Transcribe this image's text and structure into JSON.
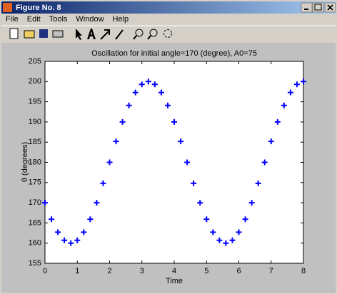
{
  "window": {
    "title": "Figure No. 8",
    "menu": [
      "File",
      "Edit",
      "Tools",
      "Window",
      "Help"
    ]
  },
  "chart_data": {
    "type": "line",
    "marker": "+",
    "title": "Oscillation for initial angle=170 (degree), A0=75",
    "x_label": "Time",
    "y_label": "θ (degrees)",
    "series": [
      {
        "color": "#0000ff",
        "x": [
          0,
          0.2,
          0.4,
          0.6,
          0.8,
          1.0,
          1.2,
          1.4,
          1.6,
          1.8,
          2.0,
          2.2,
          2.4,
          2.6,
          2.8,
          3.0,
          3.2,
          3.4,
          3.6,
          3.8,
          4.0,
          4.2,
          4.4,
          4.6,
          4.8,
          5.0,
          5.2,
          5.4,
          5.6,
          5.8,
          6.0,
          6.2,
          6.4,
          6.6,
          6.8,
          7.0,
          7.2,
          7.4,
          7.6,
          7.8,
          8.0
        ],
        "values": [
          170,
          165.9,
          162.7,
          160.7,
          160,
          160.7,
          162.7,
          165.9,
          170,
          174.8,
          180,
          185.2,
          190,
          194.1,
          197.3,
          199.3,
          200,
          199.3,
          197.3,
          194.1,
          190,
          185.2,
          180,
          174.8,
          170,
          165.9,
          162.7,
          160.7,
          160,
          160.7,
          162.7,
          165.9,
          170,
          174.8,
          180,
          185.2,
          190,
          194.1,
          197.3,
          199.3,
          200
        ]
      }
    ],
    "xlim": [
      0,
      8
    ],
    "xticks": [
      0,
      1,
      2,
      3,
      4,
      5,
      6,
      7,
      8
    ],
    "ylim": [
      155,
      205
    ],
    "yticks": [
      155,
      160,
      165,
      170,
      175,
      180,
      185,
      190,
      195,
      200,
      205
    ],
    "grid": false
  }
}
